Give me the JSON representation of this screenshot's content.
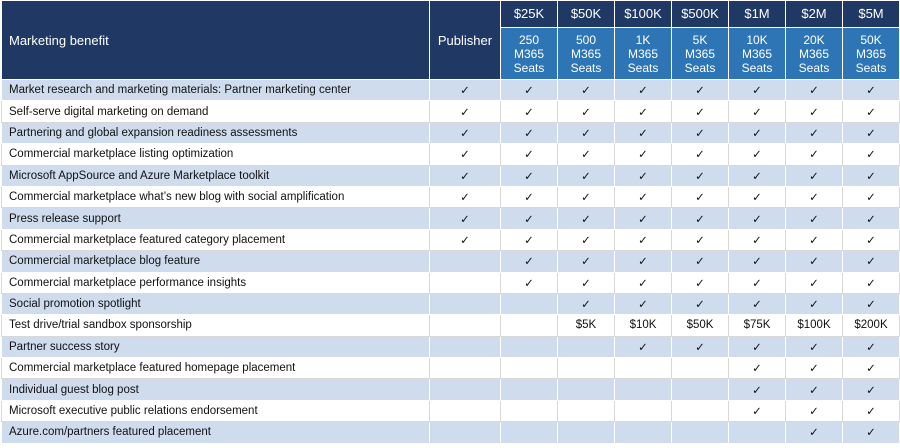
{
  "header": {
    "benefit_label": "Marketing benefit",
    "publisher_label": "Publisher",
    "tiers": [
      {
        "price": "$25K",
        "seats": [
          "250",
          "M365",
          "Seats"
        ]
      },
      {
        "price": "$50K",
        "seats": [
          "500",
          "M365",
          "Seats"
        ]
      },
      {
        "price": "$100K",
        "seats": [
          "1K",
          "M365",
          "Seats"
        ]
      },
      {
        "price": "$500K",
        "seats": [
          "5K",
          "M365",
          "Seats"
        ]
      },
      {
        "price": "$1M",
        "seats": [
          "10K",
          "M365",
          "Seats"
        ]
      },
      {
        "price": "$2M",
        "seats": [
          "20K",
          "M365",
          "Seats"
        ]
      },
      {
        "price": "$5M",
        "seats": [
          "50K",
          "M365",
          "Seats"
        ]
      }
    ]
  },
  "check_glyph": "✓",
  "rows": [
    {
      "name": "Market research and marketing materials: Partner marketing center",
      "cells": [
        "✓",
        "✓",
        "✓",
        "✓",
        "✓",
        "✓",
        "✓",
        "✓"
      ]
    },
    {
      "name": "Self-serve digital marketing on demand",
      "cells": [
        "✓",
        "✓",
        "✓",
        "✓",
        "✓",
        "✓",
        "✓",
        "✓"
      ]
    },
    {
      "name": "Partnering and global expansion readiness assessments",
      "cells": [
        "✓",
        "✓",
        "✓",
        "✓",
        "✓",
        "✓",
        "✓",
        "✓"
      ]
    },
    {
      "name": "Commercial marketplace listing optimization",
      "cells": [
        "✓",
        "✓",
        "✓",
        "✓",
        "✓",
        "✓",
        "✓",
        "✓"
      ]
    },
    {
      "name": "Microsoft AppSource and Azure Marketplace toolkit",
      "cells": [
        "✓",
        "✓",
        "✓",
        "✓",
        "✓",
        "✓",
        "✓",
        "✓"
      ]
    },
    {
      "name": "Commercial marketplace what’s new blog with social amplification",
      "cells": [
        "✓",
        "✓",
        "✓",
        "✓",
        "✓",
        "✓",
        "✓",
        "✓"
      ]
    },
    {
      "name": "Press release support",
      "cells": [
        "✓",
        "✓",
        "✓",
        "✓",
        "✓",
        "✓",
        "✓",
        "✓"
      ]
    },
    {
      "name": "Commercial marketplace featured category placement",
      "cells": [
        "✓",
        "✓",
        "✓",
        "✓",
        "✓",
        "✓",
        "✓",
        "✓"
      ]
    },
    {
      "name": "Commercial marketplace blog feature",
      "cells": [
        "",
        "✓",
        "✓",
        "✓",
        "✓",
        "✓",
        "✓",
        "✓"
      ]
    },
    {
      "name": "Commercial marketplace performance insights",
      "cells": [
        "",
        "✓",
        "✓",
        "✓",
        "✓",
        "✓",
        "✓",
        "✓"
      ]
    },
    {
      "name": "Social promotion spotlight",
      "cells": [
        "",
        "",
        "✓",
        "✓",
        "✓",
        "✓",
        "✓",
        "✓"
      ]
    },
    {
      "name": "Test drive/trial sandbox sponsorship",
      "cells": [
        "",
        "",
        "$5K",
        "$10K",
        "$50K",
        "$75K",
        "$100K",
        "$200K"
      ]
    },
    {
      "name": "Partner success story",
      "cells": [
        "",
        "",
        "",
        "✓",
        "✓",
        "✓",
        "✓",
        "✓"
      ]
    },
    {
      "name": "Commercial marketplace featured homepage placement",
      "cells": [
        "",
        "",
        "",
        "",
        "",
        "✓",
        "✓",
        "✓"
      ]
    },
    {
      "name": "Individual guest blog post",
      "cells": [
        "",
        "",
        "",
        "",
        "",
        "✓",
        "✓",
        "✓"
      ]
    },
    {
      "name": "Microsoft executive public relations endorsement",
      "cells": [
        "",
        "",
        "",
        "",
        "",
        "✓",
        "✓",
        "✓"
      ]
    },
    {
      "name": "Azure.com/partners featured placement",
      "cells": [
        "",
        "",
        "",
        "",
        "",
        "",
        "✓",
        "✓"
      ]
    }
  ],
  "colors": {
    "header_dark": "#1f3864",
    "header_blue": "#2e75b6",
    "stripe": "#cfdcee"
  }
}
